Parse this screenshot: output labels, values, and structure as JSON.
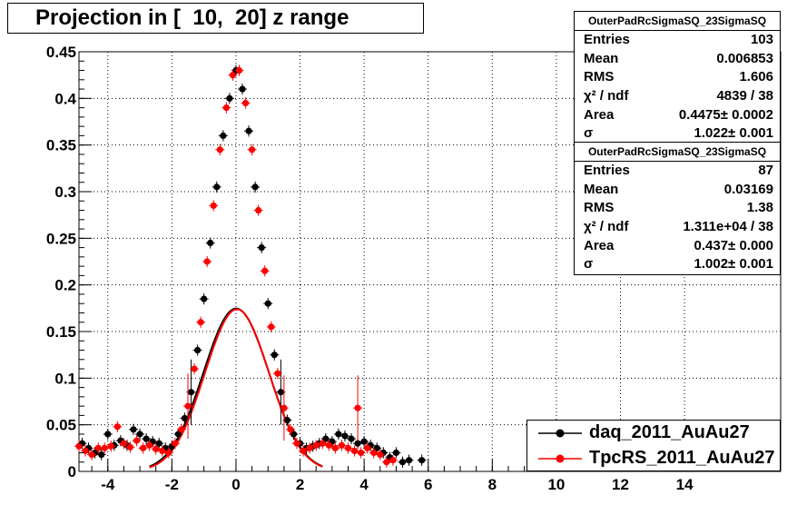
{
  "title": "Projection in [  10,  20] z range",
  "stats": [
    {
      "header": "OuterPadRcSigmaSQ_23SigmaSQ",
      "rows": [
        {
          "label": "Entries",
          "value": "103"
        },
        {
          "label": "Mean",
          "value": "0.006853"
        },
        {
          "label": "RMS",
          "value": "1.606"
        },
        {
          "label": "χ² / ndf",
          "value": "4839 / 38"
        },
        {
          "label": "Area",
          "value": "0.4475± 0.0002"
        },
        {
          "label": "σ",
          "value": "1.022± 0.001"
        }
      ]
    },
    {
      "header": "OuterPadRcSigmaSQ_23SigmaSQ",
      "rows": [
        {
          "label": "Entries",
          "value": "87"
        },
        {
          "label": "Mean",
          "value": "0.03169"
        },
        {
          "label": "RMS",
          "value": "1.38"
        },
        {
          "label": "χ² / ndf",
          "value": "1.311e+04 / 38"
        },
        {
          "label": "Area",
          "value": "0.437± 0.000"
        },
        {
          "label": "σ",
          "value": "1.002± 0.001"
        }
      ]
    }
  ],
  "legend": [
    {
      "label": "daq_2011_AuAu27",
      "color": "#000000"
    },
    {
      "label": "TpcRS_2011_AuAu27",
      "color": "#ff0000"
    }
  ],
  "chart_data": {
    "type": "scatter",
    "title": "Projection in [  10,  20] z range",
    "xlim": [
      -4.9,
      17.0
    ],
    "ylim": [
      0,
      0.45
    ],
    "grid": true,
    "xticks": [
      -4,
      -2,
      0,
      2,
      4,
      6,
      8,
      10,
      12,
      14
    ],
    "yticks": [
      0,
      0.05,
      0.1,
      0.15,
      0.2,
      0.25,
      0.3,
      0.35,
      0.4,
      0.45
    ],
    "ytick_labels": [
      "0",
      "0.05",
      "0.1",
      "0.15",
      "0.2",
      "0.25",
      "0.3",
      "0.35",
      "0.4",
      "0.45"
    ],
    "legend_position": "bottom-right",
    "series": [
      {
        "name": "daq_2011_AuAu27",
        "color": "#000000",
        "points": [
          [
            -4.8,
            0.03
          ],
          [
            -4.6,
            0.025
          ],
          [
            -4.4,
            0.02
          ],
          [
            -4.2,
            0.018
          ],
          [
            -4.0,
            0.04
          ],
          [
            -3.8,
            0.028
          ],
          [
            -3.6,
            0.033
          ],
          [
            -3.4,
            0.028
          ],
          [
            -3.2,
            0.045
          ],
          [
            -3.0,
            0.04
          ],
          [
            -2.8,
            0.035
          ],
          [
            -2.6,
            0.032
          ],
          [
            -2.4,
            0.03
          ],
          [
            -2.2,
            0.025
          ],
          [
            -2.0,
            0.027
          ],
          [
            -1.8,
            0.04
          ],
          [
            -1.6,
            0.057
          ],
          [
            -1.4,
            0.085
          ],
          [
            -1.2,
            0.13
          ],
          [
            -1.0,
            0.185
          ],
          [
            -0.8,
            0.245
          ],
          [
            -0.6,
            0.305
          ],
          [
            -0.4,
            0.36
          ],
          [
            -0.2,
            0.4
          ],
          [
            0.0,
            0.43
          ],
          [
            0.2,
            0.41
          ],
          [
            0.4,
            0.365
          ],
          [
            0.6,
            0.305
          ],
          [
            0.8,
            0.24
          ],
          [
            1.0,
            0.18
          ],
          [
            1.2,
            0.125
          ],
          [
            1.4,
            0.085
          ],
          [
            1.6,
            0.055
          ],
          [
            1.8,
            0.04
          ],
          [
            2.0,
            0.03
          ],
          [
            2.2,
            0.025
          ],
          [
            2.4,
            0.027
          ],
          [
            2.6,
            0.03
          ],
          [
            2.8,
            0.035
          ],
          [
            3.0,
            0.032
          ],
          [
            3.2,
            0.04
          ],
          [
            3.4,
            0.038
          ],
          [
            3.6,
            0.035
          ],
          [
            3.8,
            0.03
          ],
          [
            4.0,
            0.032
          ],
          [
            4.2,
            0.028
          ],
          [
            4.4,
            0.025
          ],
          [
            4.6,
            0.02
          ],
          [
            4.8,
            0.015
          ],
          [
            5.0,
            0.02
          ],
          [
            5.2,
            0.01
          ],
          [
            5.4,
            0.012
          ],
          [
            5.8,
            0.012
          ]
        ]
      },
      {
        "name": "TpcRS_2011_AuAu27",
        "color": "#ff0000",
        "points": [
          [
            -4.9,
            0.027
          ],
          [
            -4.7,
            0.022
          ],
          [
            -4.5,
            0.018
          ],
          [
            -4.3,
            0.025
          ],
          [
            -4.1,
            0.025
          ],
          [
            -3.9,
            0.027
          ],
          [
            -3.7,
            0.048
          ],
          [
            -3.5,
            0.03
          ],
          [
            -3.3,
            0.026
          ],
          [
            -3.1,
            0.033
          ],
          [
            -2.9,
            0.025
          ],
          [
            -2.7,
            0.028
          ],
          [
            -2.5,
            0.024
          ],
          [
            -2.3,
            0.022
          ],
          [
            -2.1,
            0.02
          ],
          [
            -1.9,
            0.03
          ],
          [
            -1.7,
            0.045
          ],
          [
            -1.5,
            0.07
          ],
          [
            -1.3,
            0.11
          ],
          [
            -1.1,
            0.16
          ],
          [
            -0.9,
            0.225
          ],
          [
            -0.7,
            0.285
          ],
          [
            -0.5,
            0.345
          ],
          [
            -0.3,
            0.39
          ],
          [
            -0.1,
            0.425
          ],
          [
            0.1,
            0.43
          ],
          [
            0.3,
            0.395
          ],
          [
            0.5,
            0.345
          ],
          [
            0.7,
            0.28
          ],
          [
            0.9,
            0.215
          ],
          [
            1.1,
            0.155
          ],
          [
            1.3,
            0.105
          ],
          [
            1.5,
            0.068
          ],
          [
            1.7,
            0.045
          ],
          [
            1.9,
            0.03
          ],
          [
            2.1,
            0.022
          ],
          [
            2.3,
            0.025
          ],
          [
            2.5,
            0.028
          ],
          [
            2.7,
            0.03
          ],
          [
            2.9,
            0.028
          ],
          [
            3.1,
            0.025
          ],
          [
            3.3,
            0.028
          ],
          [
            3.5,
            0.025
          ],
          [
            3.7,
            0.022
          ],
          [
            3.8,
            0.068
          ],
          [
            3.9,
            0.02
          ],
          [
            4.1,
            0.025
          ],
          [
            4.3,
            0.02
          ],
          [
            4.5,
            0.018
          ],
          [
            4.7,
            0.01
          ],
          [
            4.9,
            0.012
          ]
        ]
      }
    ],
    "fits": [
      {
        "name": "daq_2011_AuAu27",
        "color": "#000000",
        "area": 0.4475,
        "sigma": 1.022,
        "mean": 0.006853
      },
      {
        "name": "TpcRS_2011_AuAu27",
        "color": "#ff0000",
        "area": 0.437,
        "sigma": 1.002,
        "mean": 0.03169
      }
    ]
  }
}
